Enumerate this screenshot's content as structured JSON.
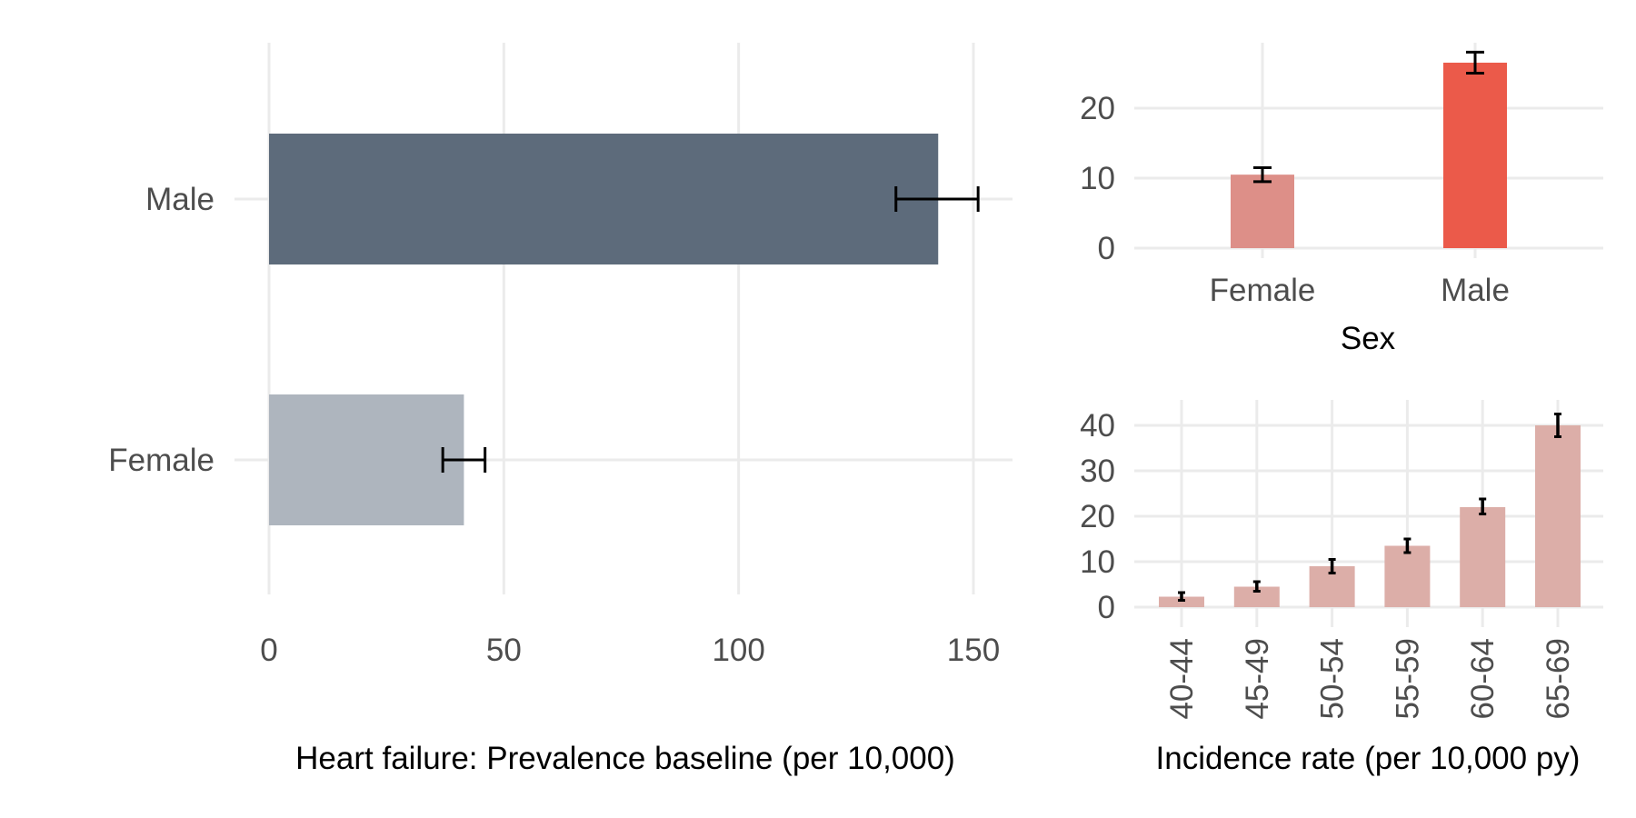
{
  "chart_data": [
    {
      "type": "bar",
      "orientation": "horizontal",
      "categories": [
        "Male",
        "Female"
      ],
      "values": [
        142.5,
        41.5
      ],
      "error_low": [
        133.5,
        37
      ],
      "error_high": [
        151,
        46
      ],
      "colors": [
        "#5d6b7b",
        "#aeb5be"
      ],
      "xlabel": "Heart failure: Prevalence baseline (per 10,000)",
      "xlim": [
        -3,
        159
      ],
      "xticks": [
        0,
        50,
        100,
        150
      ],
      "grid": true,
      "legend": "none"
    },
    {
      "type": "bar",
      "categories": [
        "Female",
        "Male"
      ],
      "values": [
        10.5,
        26.5
      ],
      "error_low": [
        9.5,
        25
      ],
      "error_high": [
        11.5,
        28
      ],
      "colors": [
        "#dd8f88",
        "#eb5a4a"
      ],
      "xlabel": "Sex",
      "ylim": [
        -1.4,
        29.3
      ],
      "yticks": [
        0,
        10,
        20
      ],
      "grid": true,
      "legend": "none"
    },
    {
      "type": "bar",
      "categories": [
        "40-44",
        "45-49",
        "50-54",
        "55-59",
        "60-64",
        "65-69"
      ],
      "values": [
        2.3,
        4.5,
        9,
        13.5,
        22,
        40
      ],
      "error_low": [
        1.5,
        3.5,
        7.5,
        12,
        20.5,
        37.5
      ],
      "error_high": [
        3.2,
        5.6,
        10.5,
        15,
        23.8,
        42.5
      ],
      "color": "#dcaea8",
      "xlabel": "Incidence rate (per 10,000 py)",
      "ylim": [
        -2.1,
        44.5
      ],
      "yticks": [
        0,
        10,
        20,
        30,
        40
      ],
      "grid": true,
      "legend": "none"
    }
  ]
}
